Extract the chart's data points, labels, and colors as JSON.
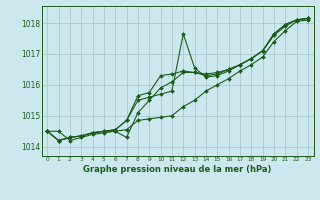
{
  "title": "Graphe pression niveau de la mer (hPa)",
  "bg_color": "#cce8ee",
  "grid_color": "#aac8d0",
  "line_color": "#1a5c1a",
  "xlim": [
    -0.5,
    23.5
  ],
  "ylim": [
    1013.7,
    1018.55
  ],
  "yticks": [
    1014,
    1015,
    1016,
    1017,
    1018
  ],
  "xticks": [
    0,
    1,
    2,
    3,
    4,
    5,
    6,
    7,
    8,
    9,
    10,
    11,
    12,
    13,
    14,
    15,
    16,
    17,
    18,
    19,
    20,
    21,
    22,
    23
  ],
  "series": [
    [
      1014.5,
      1014.5,
      1014.2,
      1014.3,
      1014.4,
      1014.45,
      1014.5,
      1014.55,
      1014.85,
      1014.9,
      1014.95,
      1015.0,
      1015.3,
      1015.5,
      1015.8,
      1016.0,
      1016.2,
      1016.45,
      1016.65,
      1016.9,
      1017.4,
      1017.75,
      1018.05,
      1018.1
    ],
    [
      1014.5,
      1014.2,
      1014.3,
      1014.35,
      1014.45,
      1014.5,
      1014.5,
      1014.3,
      1015.1,
      1015.5,
      1015.9,
      1016.1,
      1016.4,
      1016.4,
      1016.35,
      1016.4,
      1016.5,
      1016.65,
      1016.85,
      1017.1,
      1017.6,
      1017.9,
      1018.1,
      1018.15
    ],
    [
      1014.5,
      1014.2,
      1014.3,
      1014.35,
      1014.45,
      1014.5,
      1014.55,
      1014.85,
      1015.5,
      1015.6,
      1015.7,
      1015.8,
      1017.65,
      1016.55,
      1016.25,
      1016.3,
      1016.45,
      1016.65,
      1016.85,
      1017.1,
      1017.65,
      1017.95,
      1018.1,
      1018.15
    ],
    [
      1014.5,
      1014.2,
      1014.3,
      1014.35,
      1014.45,
      1014.5,
      1014.55,
      1014.85,
      1015.65,
      1015.75,
      1016.3,
      1016.35,
      1016.45,
      1016.4,
      1016.3,
      1016.35,
      1016.5,
      1016.65,
      1016.85,
      1017.1,
      1017.65,
      1017.95,
      1018.1,
      1018.15
    ]
  ],
  "title_color": "#1a5c1a",
  "tick_color": "#1a5c1a",
  "markersize": 2.0,
  "linewidth": 0.8,
  "xlabel_fontsize": 6.0,
  "ytick_fontsize": 5.5,
  "xtick_fontsize": 4.2
}
